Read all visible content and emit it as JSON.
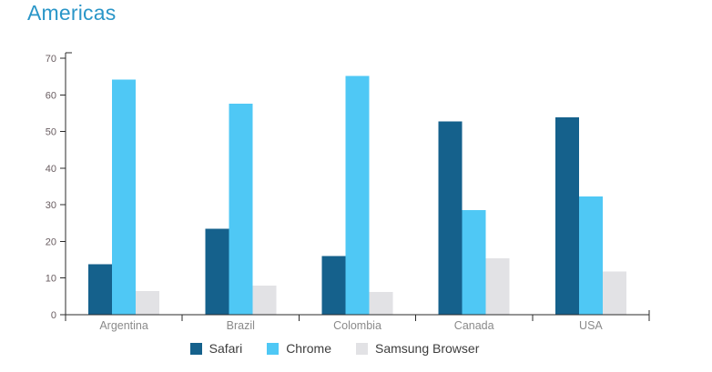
{
  "title": "Americas",
  "colors": {
    "title": "#2a96c8",
    "axis_line": "#2b2b2b",
    "y_tick_label": "#695d61",
    "x_tick_label": "#8a8a8a",
    "legend_label": "#3d3d3d",
    "background": "#ffffff"
  },
  "chart_data": {
    "type": "bar",
    "title": "Americas",
    "categories": [
      "Argentina",
      "Brazil",
      "Colombia",
      "Canada",
      "USA"
    ],
    "series": [
      {
        "name": "Safari",
        "color": "#15618c",
        "values": [
          13.8,
          23.5,
          16.0,
          52.7,
          53.9
        ]
      },
      {
        "name": "Chrome",
        "color": "#4fc8f5",
        "values": [
          64.2,
          57.6,
          65.2,
          28.6,
          32.3
        ]
      },
      {
        "name": "Samsung Browser",
        "color": "#e2e2e5",
        "values": [
          6.4,
          8.0,
          6.2,
          15.4,
          11.8
        ]
      }
    ],
    "xlabel": "",
    "ylabel": "",
    "ylim": [
      0,
      70
    ],
    "yticks": [
      0,
      10,
      20,
      30,
      40,
      50,
      60,
      70
    ],
    "grid": false,
    "legend_position": "bottom"
  }
}
